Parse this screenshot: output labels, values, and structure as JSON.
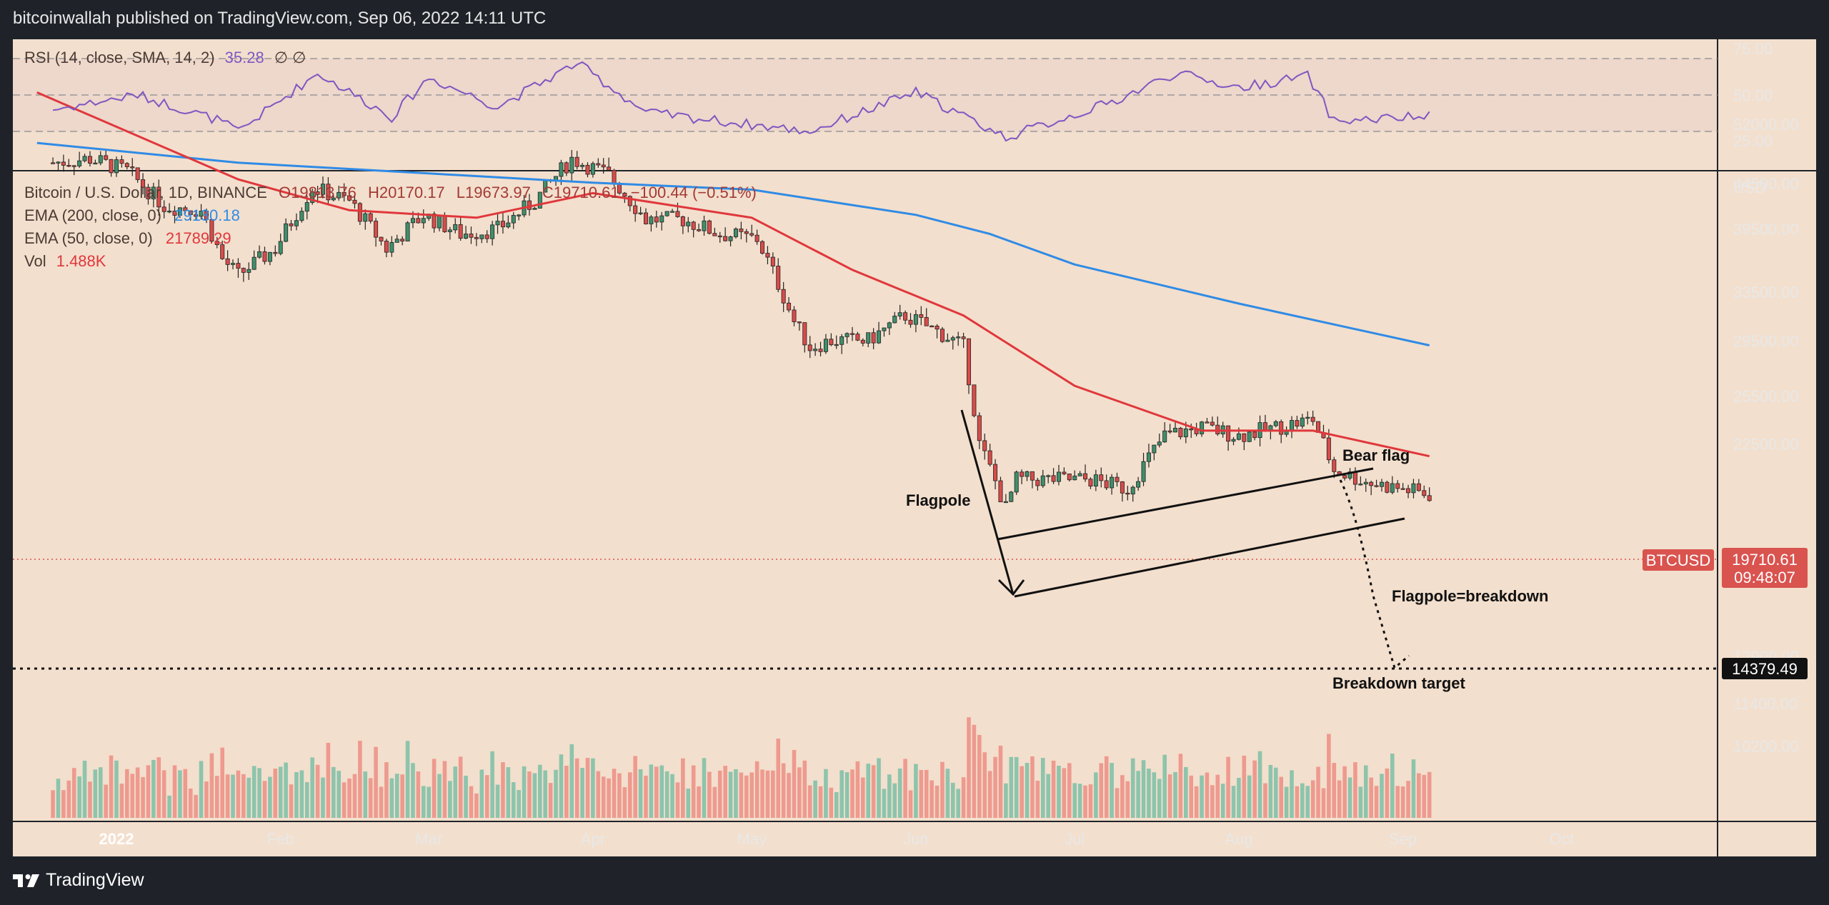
{
  "header": {
    "published_by": "bitcoinwallah published on TradingView.com, Sep 06, 2022 14:11 UTC"
  },
  "footer": {
    "brand": "TradingView",
    "logo_icon": "tradingview-logo-icon"
  },
  "colors": {
    "background": "#f3dfcd",
    "frame": "#1f2329",
    "rsi_band": "#eed7cb",
    "rsi_line": "#7e57c2",
    "ema200": "#2f8be6",
    "ema50": "#e0373c",
    "candle_up": "#3f8f6b",
    "candle_down": "#d84c4a",
    "vol_up": "#8dc4ac",
    "vol_down": "#ee9a8f",
    "price_tag": "#d9534f"
  },
  "rsi": {
    "legend_name": "RSI (14, close, SMA, 14, 2)",
    "legend_value": "35.28",
    "legend_marks": "∅  ∅",
    "levels": [
      "75.00",
      "50.00",
      "25.00"
    ]
  },
  "legend": {
    "symbol": "Bitcoin / U.S. Dollar, 1D, BINANCE",
    "open": "O19813.76",
    "high": "H20170.17",
    "low": "L19673.97",
    "close": "C19710.61",
    "change": "−100.44 (−0.51%)",
    "ema200_label": "EMA (200, close, 0)",
    "ema200_value": "29130.18",
    "ema50_label": "EMA (50, close, 0)",
    "ema50_value": "21789.29",
    "vol_label": "Vol",
    "vol_value": "1.488K"
  },
  "price_axis": {
    "unit": "USD",
    "ticks": [
      "52000.00",
      "44500.00",
      "39500.00",
      "33500.00",
      "29500.00",
      "25500.00",
      "22500.00",
      "16500.00",
      "12900.00",
      "11400.00",
      "10200.00"
    ]
  },
  "time_axis": {
    "ticks": [
      "2022",
      "Feb",
      "Mar",
      "Apr",
      "May",
      "Jun",
      "Jul",
      "Aug",
      "Sep",
      "Oct"
    ]
  },
  "price_tag": {
    "symbol": "BTCUSD",
    "price": "19710.61",
    "countdown": "09:48:07"
  },
  "target_tag": {
    "price": "14379.49"
  },
  "annotations": {
    "flagpole": "Flagpole",
    "bear_flag": "Bear flag",
    "flagpole_breakdown": "Flagpole=breakdown",
    "breakdown_target": "Breakdown target"
  },
  "chart_data": {
    "type": "candlestick",
    "symbol": "BTCUSD",
    "interval": "1D",
    "x_range": [
      "2021-12-17",
      "2022-10-28"
    ],
    "y_scale": "log",
    "y_range": [
      9200,
      59000
    ],
    "grid": false,
    "closes": [
      {
        "date": "2021-12-20",
        "close": 47000
      },
      {
        "date": "2021-12-27",
        "close": 47500
      },
      {
        "date": "2022-01-03",
        "close": 46000
      },
      {
        "date": "2022-01-10",
        "close": 42000
      },
      {
        "date": "2022-01-17",
        "close": 41500
      },
      {
        "date": "2022-01-21",
        "close": 36500
      },
      {
        "date": "2022-01-24",
        "close": 35000
      },
      {
        "date": "2022-01-31",
        "close": 37500
      },
      {
        "date": "2022-02-07",
        "close": 44000
      },
      {
        "date": "2022-02-14",
        "close": 42500
      },
      {
        "date": "2022-02-21",
        "close": 37500
      },
      {
        "date": "2022-02-28",
        "close": 41000
      },
      {
        "date": "2022-03-07",
        "close": 39000
      },
      {
        "date": "2022-03-14",
        "close": 39500
      },
      {
        "date": "2022-03-21",
        "close": 42500
      },
      {
        "date": "2022-03-28",
        "close": 47500
      },
      {
        "date": "2022-04-04",
        "close": 45500
      },
      {
        "date": "2022-04-11",
        "close": 40500
      },
      {
        "date": "2022-04-18",
        "close": 40500
      },
      {
        "date": "2022-04-25",
        "close": 39000
      },
      {
        "date": "2022-05-02",
        "close": 38500
      },
      {
        "date": "2022-05-09",
        "close": 31000
      },
      {
        "date": "2022-05-12",
        "close": 29000
      },
      {
        "date": "2022-05-16",
        "close": 29500
      },
      {
        "date": "2022-05-23",
        "close": 29500
      },
      {
        "date": "2022-05-30",
        "close": 31500
      },
      {
        "date": "2022-06-06",
        "close": 30000
      },
      {
        "date": "2022-06-10",
        "close": 29000
      },
      {
        "date": "2022-06-13",
        "close": 22500
      },
      {
        "date": "2022-06-18",
        "close": 19000
      },
      {
        "date": "2022-06-20",
        "close": 20500
      },
      {
        "date": "2022-06-27",
        "close": 20500
      },
      {
        "date": "2022-07-04",
        "close": 20500
      },
      {
        "date": "2022-07-11",
        "close": 20000
      },
      {
        "date": "2022-07-18",
        "close": 23000
      },
      {
        "date": "2022-07-25",
        "close": 23500
      },
      {
        "date": "2022-08-01",
        "close": 23000
      },
      {
        "date": "2022-08-08",
        "close": 23500
      },
      {
        "date": "2022-08-15",
        "close": 24000
      },
      {
        "date": "2022-08-19",
        "close": 21000
      },
      {
        "date": "2022-08-26",
        "close": 20300
      },
      {
        "date": "2022-09-01",
        "close": 20000
      },
      {
        "date": "2022-09-06",
        "close": 19710.61
      }
    ],
    "ema200": [
      {
        "date": "2021-12-17",
        "value": 49500
      },
      {
        "date": "2022-01-24",
        "value": 47000
      },
      {
        "date": "2022-03-01",
        "value": 45700
      },
      {
        "date": "2022-04-01",
        "value": 44600
      },
      {
        "date": "2022-05-01",
        "value": 43800
      },
      {
        "date": "2022-06-01",
        "value": 41000
      },
      {
        "date": "2022-06-15",
        "value": 39000
      },
      {
        "date": "2022-07-01",
        "value": 36000
      },
      {
        "date": "2022-08-01",
        "value": 32500
      },
      {
        "date": "2022-09-06",
        "value": 29130.18
      }
    ],
    "ema50": [
      {
        "date": "2021-12-17",
        "value": 56500
      },
      {
        "date": "2022-01-24",
        "value": 45000
      },
      {
        "date": "2022-02-14",
        "value": 41500
      },
      {
        "date": "2022-03-10",
        "value": 40700
      },
      {
        "date": "2022-04-01",
        "value": 43400
      },
      {
        "date": "2022-05-01",
        "value": 40700
      },
      {
        "date": "2022-05-20",
        "value": 35500
      },
      {
        "date": "2022-06-10",
        "value": 31500
      },
      {
        "date": "2022-07-01",
        "value": 26200
      },
      {
        "date": "2022-07-25",
        "value": 23300
      },
      {
        "date": "2022-08-15",
        "value": 23300
      },
      {
        "date": "2022-09-06",
        "value": 21789.29
      }
    ],
    "rsi": [
      {
        "date": "2021-12-20",
        "value": 40
      },
      {
        "date": "2022-01-05",
        "value": 50
      },
      {
        "date": "2022-01-20",
        "value": 33
      },
      {
        "date": "2022-01-24",
        "value": 25
      },
      {
        "date": "2022-02-08",
        "value": 65
      },
      {
        "date": "2022-02-22",
        "value": 35
      },
      {
        "date": "2022-03-01",
        "value": 62
      },
      {
        "date": "2022-03-14",
        "value": 42
      },
      {
        "date": "2022-03-29",
        "value": 72
      },
      {
        "date": "2022-04-11",
        "value": 38
      },
      {
        "date": "2022-05-12",
        "value": 25
      },
      {
        "date": "2022-06-01",
        "value": 52
      },
      {
        "date": "2022-06-18",
        "value": 21
      },
      {
        "date": "2022-07-08",
        "value": 45
      },
      {
        "date": "2022-07-20",
        "value": 65
      },
      {
        "date": "2022-08-01",
        "value": 55
      },
      {
        "date": "2022-08-14",
        "value": 63
      },
      {
        "date": "2022-08-19",
        "value": 32
      },
      {
        "date": "2022-09-06",
        "value": 35.28
      }
    ],
    "horizontal_line": {
      "label": "Breakdown target",
      "value": 14379.49
    },
    "current_price": 19710.61
  }
}
